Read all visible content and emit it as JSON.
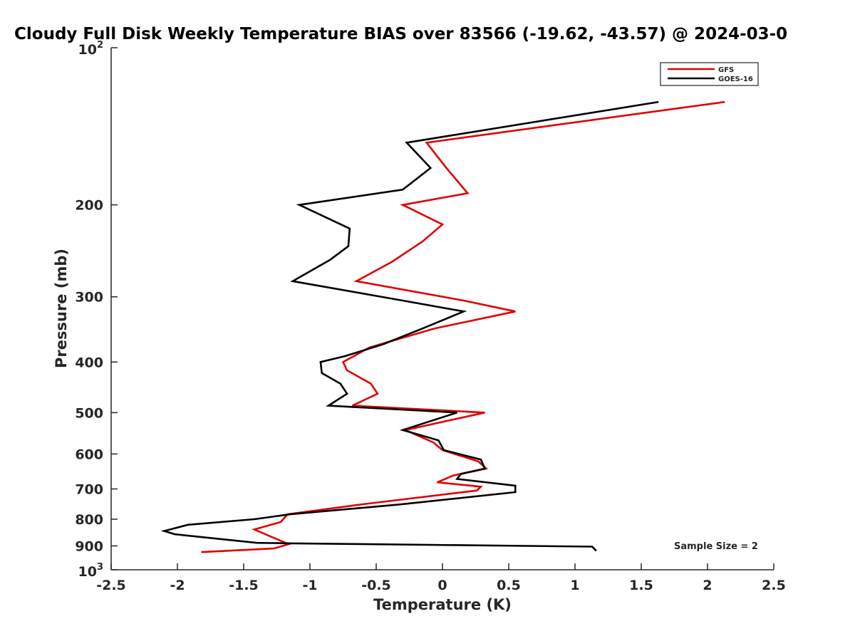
{
  "chart_data": {
    "type": "line",
    "title": "Cloudy Full Disk Weekly Temperature BIAS over 83566 (-19.62, -43.57) @ 2024-03-0",
    "xlabel": "Temperature (K)",
    "ylabel": "Pressure (mb)",
    "xlim": [
      -2.5,
      2.5
    ],
    "ylim": [
      1000,
      100
    ],
    "y_scale": "log",
    "grid": false,
    "legend_position": "top-right",
    "x_ticks": [
      {
        "value": -2.5,
        "label": "-2.5"
      },
      {
        "value": -2,
        "label": "-2"
      },
      {
        "value": -1.5,
        "label": "-1.5"
      },
      {
        "value": -1,
        "label": "-1"
      },
      {
        "value": -0.5,
        "label": "-0.5"
      },
      {
        "value": 0,
        "label": "0"
      },
      {
        "value": 0.5,
        "label": "0.5"
      },
      {
        "value": 1,
        "label": "1"
      },
      {
        "value": 1.5,
        "label": "1.5"
      },
      {
        "value": 2,
        "label": "2"
      },
      {
        "value": 2.5,
        "label": "2.5"
      }
    ],
    "y_ticks": [
      {
        "value": 100,
        "base": "10",
        "exp": "2"
      },
      {
        "value": 200,
        "label": "200"
      },
      {
        "value": 300,
        "label": "300"
      },
      {
        "value": 400,
        "label": "400"
      },
      {
        "value": 500,
        "label": "500"
      },
      {
        "value": 600,
        "label": "600"
      },
      {
        "value": 700,
        "label": "700"
      },
      {
        "value": 800,
        "label": "800"
      },
      {
        "value": 900,
        "label": "900"
      },
      {
        "value": 1000,
        "base": "10",
        "exp": "3"
      }
    ],
    "series": [
      {
        "name": "GFS",
        "color": "#e00000",
        "points": [
          [
            2.13,
            127
          ],
          [
            -0.12,
            152
          ],
          [
            0.03,
            170
          ],
          [
            0.19,
            190
          ],
          [
            -0.3,
            200
          ],
          [
            0,
            218
          ],
          [
            -0.15,
            235
          ],
          [
            -0.38,
            257
          ],
          [
            -0.65,
            280
          ],
          [
            0.16,
            305
          ],
          [
            0.55,
            320
          ],
          [
            -0.06,
            345
          ],
          [
            -0.55,
            375
          ],
          [
            -0.75,
            400
          ],
          [
            -0.72,
            415
          ],
          [
            -0.54,
            440
          ],
          [
            -0.49,
            460
          ],
          [
            -0.68,
            485
          ],
          [
            0.32,
            500
          ],
          [
            -0.28,
            540
          ],
          [
            -0.07,
            570
          ],
          [
            0,
            590
          ],
          [
            0.27,
            620
          ],
          [
            0.33,
            640
          ],
          [
            0.08,
            660
          ],
          [
            -0.04,
            680
          ],
          [
            0.29,
            693
          ],
          [
            0.26,
            705
          ],
          [
            -0.62,
            750
          ],
          [
            -1.17,
            783
          ],
          [
            -1.22,
            810
          ],
          [
            -1.42,
            837
          ],
          [
            -1.29,
            865
          ],
          [
            -1.16,
            893
          ],
          [
            -1.27,
            910
          ],
          [
            -1.82,
            925
          ]
        ]
      },
      {
        "name": "GOES-16",
        "color": "#000000",
        "points": [
          [
            1.63,
            127
          ],
          [
            -0.27,
            152
          ],
          [
            -0.09,
            170
          ],
          [
            -0.3,
            187
          ],
          [
            -1.08,
            200
          ],
          [
            -0.7,
            222
          ],
          [
            -0.71,
            240
          ],
          [
            -0.85,
            255
          ],
          [
            -1.13,
            280
          ],
          [
            -0.3,
            305
          ],
          [
            0.16,
            320
          ],
          [
            -0.15,
            345
          ],
          [
            -0.45,
            370
          ],
          [
            -0.74,
            390
          ],
          [
            -0.92,
            400
          ],
          [
            -0.91,
            420
          ],
          [
            -0.77,
            440
          ],
          [
            -0.72,
            460
          ],
          [
            -0.86,
            485
          ],
          [
            0.11,
            500
          ],
          [
            -0.3,
            540
          ],
          [
            -0.03,
            565
          ],
          [
            0.01,
            590
          ],
          [
            0.29,
            615
          ],
          [
            0.32,
            640
          ],
          [
            0.14,
            655
          ],
          [
            0.11,
            670
          ],
          [
            0.55,
            690
          ],
          [
            0.55,
            710
          ],
          [
            -0.33,
            750
          ],
          [
            -1.15,
            783
          ],
          [
            -1.42,
            800
          ],
          [
            -1.92,
            820
          ],
          [
            -2.1,
            843
          ],
          [
            -2.02,
            855
          ],
          [
            -1.4,
            888
          ],
          [
            -1.13,
            890
          ],
          [
            1.13,
            903
          ],
          [
            1.16,
            920
          ]
        ]
      }
    ],
    "annotation": "Sample Size = 2"
  }
}
